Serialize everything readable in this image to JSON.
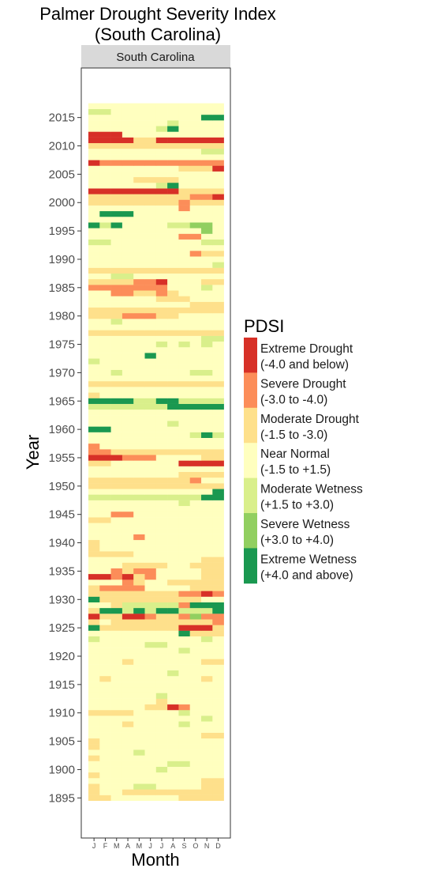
{
  "chart_data": {
    "type": "heatmap",
    "title_line1": "Palmer Drought Severity Index",
    "title_line2": "(South Carolina)",
    "facet_label": "South Carolina",
    "xlabel": "Month",
    "ylabel": "Year",
    "x_categories": [
      "J",
      "F",
      "M",
      "A",
      "M",
      "J",
      "J",
      "A",
      "S",
      "O",
      "N",
      "D"
    ],
    "y_range": [
      1895,
      2017
    ],
    "y_ticks": [
      1895,
      1900,
      1905,
      1910,
      1915,
      1920,
      1925,
      1930,
      1935,
      1940,
      1945,
      1950,
      1955,
      1960,
      1965,
      1970,
      1975,
      1980,
      1985,
      1990,
      1995,
      2000,
      2005,
      2010,
      2015
    ],
    "legend": {
      "title": "PDSI",
      "entries": [
        {
          "label_line1": "Extreme Drought",
          "label_line2": "(-4.0 and below)",
          "color": "#d73027"
        },
        {
          "label_line1": "Severe Drought",
          "label_line2": "(-3.0 to -4.0)",
          "color": "#fc8d59"
        },
        {
          "label_line1": "Moderate Drought",
          "label_line2": "(-1.5 to -3.0)",
          "color": "#fee08b"
        },
        {
          "label_line1": "Near Normal",
          "label_line2": "(-1.5 to +1.5)",
          "color": "#ffffbf"
        },
        {
          "label_line1": "Moderate Wetness",
          "label_line2": "(+1.5 to +3.0)",
          "color": "#d9ef8b"
        },
        {
          "label_line1": "Severe Wetness",
          "label_line2": "(+3.0 to +4.0)",
          "color": "#91cf60"
        },
        {
          "label_line1": "Extreme Wetness",
          "label_line2": "(+4.0 and above)",
          "color": "#1a9850"
        }
      ]
    },
    "category_codes": {
      "E": 0,
      "S": 1,
      "D": 2,
      "N": 3,
      "W": 4,
      "V": 5,
      "X": 6
    },
    "row_default": "N",
    "months": {
      "J": 0,
      "F": 1,
      "M": 2,
      "A": 3,
      "M2": 4,
      "J2": 5,
      "J3": 6,
      "A2": 7,
      "S": 8,
      "O": 9,
      "N": 10,
      "D": 11
    },
    "cells": {
      "1895": "DDNNNNNNDDDD",
      "1896": "DNNDDDDDDDDD",
      "1897": "DNNNWWNNNNDD",
      "1898": "NNNNNNNNNNDD",
      "1899": "DNNNNNNNNNNN",
      "1900": "NNNNNNWNNNNN",
      "1901": "NNNNNNNWWNNN",
      "1902": "DNNNNNNNNNNN",
      "1903": "NNNNWNNNNNNN",
      "1904": "DNNNNNNNNNNN",
      "1905": "DNNNNNNNNNNN",
      "1906": "NNNNNNNNNNDD",
      "1907": "NNNNNNNNNNNN",
      "1908": "NNNDNNNNWNNN",
      "1909": "NNNNNNNNNNWN",
      "1910": "DDDDNNNNWNNN",
      "1911": "NNNNNDDESNNN",
      "1912": "NNNNNNDNNNNN",
      "1913": "NNNNNNWNNNNN",
      "1914": "NNNNNNNNNNNN",
      "1915": "NNNNNNNNNNNN",
      "1916": "NDNNNNNNNNDN",
      "1917": "NNNNNNNWNNNN",
      "1918": "NNNNNNNNNNNN",
      "1919": "NNNDNNNNNNDD",
      "1920": "NNNNNNNNNNNN",
      "1921": "NNNNNNNNWNNN",
      "1922": "NNNNNWWNNNNN",
      "1923": "WNNNNNNNNNWN",
      "1924": "NNNNNNNNXDDD",
      "1925": "XDDDDDDDEEED",
      "1926": "DNDDDDDDDDDS",
      "1927": "EDDEESDDSVSS",
      "1928": "DXXWXWXXWWWX",
      "1929": "NNDWWWWWSXXX",
      "1930": "XDDDDDDDDDNN",
      "1931": "DDDDDDDDSSES",
      "1932": "DSSSSNNNNDDD",
      "1933": "NNNSDNNDDDDD",
      "1934": "EESEDSNNNNDD",
      "1935": "NNSDSSNNNNDD",
      "1936": "NNNDDDDNNDDD",
      "1937": "NNNNNNNNNNDD",
      "1938": "DDDDNNNNNNNN",
      "1939": "DNNNNNNNNNNN",
      "1940": "DNNNNNNNNNNN",
      "1941": "NNNNSNNNNNNN",
      "1942": "NNNNNNNNNNNN",
      "1943": "NNNNNNNNNNNN",
      "1944": "DDNNNNNNNNNN",
      "1945": "NNSSNNNNNNNN",
      "1946": "NNNNNNNNNNNN",
      "1947": "NNNNNNNNWNNN",
      "1948": "WWWWWWWWWWXX",
      "1949": "NNNNNNNNNNNX",
      "1950": "DDDDDDDDDDDD",
      "1951": "DDDDDDDDDSNN",
      "1952": "NNNNNNNNDDDD",
      "1953": "NNNNNNNNNNNN",
      "1954": "DDNNNNNNEEEE",
      "1955": "EEESSSNNNNDD",
      "1956": "SSDDDDDDDDDD",
      "1957": "SNNNNNNNNNNN",
      "1958": "NNNNNNNNNNNN",
      "1959": "NNNNNNNNNWXW",
      "1960": "XXNNNNNNNNNN",
      "1961": "NNNNNNNWNNNN",
      "1962": "NNNNNNNNNNNN",
      "1963": "NNNNNNNNNNNN",
      "1964": "WWWWWWWXXXXX",
      "1965": "XXXXWWXXWWWW",
      "1966": "DNNNNNNNNNNN",
      "1967": "NNNNNNNNNNNN",
      "1968": "DDDDDDDDDDDD",
      "1969": "NNNNNNNNNNNN",
      "1970": "NNWNNNNNNWWN",
      "1971": "NNNNNNNNNNNN",
      "1972": "WNNNNNNNNNNN",
      "1973": "NNNNNXNNNNNN",
      "1974": "NNNNNNNNNNNN",
      "1975": "NNNNNNWNWNWN",
      "1976": "NNNNNNNNNNWW",
      "1977": "DDDDDDDDDDDD",
      "1978": "NNNNNNNNNNNN",
      "1979": "NNWNNNNNNNNN",
      "1980": "DDDSSSDDNNNN",
      "1981": "DDDDDDDDDDDD",
      "1982": "NNNNNNNNNDDD",
      "1983": "NNNNNNDDDNNN",
      "1984": "NNSSDDSDNNNN",
      "1985": "SSSSSSSNNNWN",
      "1986": "DDDDSSENNNDD",
      "1987": "NNWWNNNNNNNN",
      "1988": "DDDDDDDDDDDD",
      "1989": "NNNNNNNNNNNW",
      "1990": "NNNNNNNNNNNN",
      "1991": "NNNNNNNNNSDD",
      "1992": "NNNNNNNNNNNN",
      "1993": "WWNNNNNNNNWW",
      "1994": "NNNNNNNNSSNN",
      "1995": "NNNNNNNNNNVN",
      "1996": "XWXNNNNWWVVN",
      "1997": "NNNNNNNNNNNN",
      "1998": "NXXXNNNNNNNN",
      "1999": "NNNNNNNNSNNN",
      "2000": "DDDDDDDDSDDD",
      "2001": "DDDDDDDDDSSE",
      "2002": "EEEEEEEEDDDD",
      "2003": "NNNNNNWXNNNN",
      "2004": "NNNNDDDDNNNN",
      "2005": "NNNNNNNNNNNN",
      "2006": "NNNNNNNNDDDE",
      "2007": "ESSSSSSSSSSS",
      "2008": "NNNNNNNNNNNN",
      "2009": "NNNNNNNNNNWW",
      "2010": "DDDDDDDDDDDD",
      "2011": "EEEEDDEEEEEE",
      "2012": "EEENNNNNNNNN",
      "2013": "NNNNNNWXNNNN",
      "2014": "NNNNNNNWNNNN",
      "2015": "NNNNNNNNNNXX",
      "2016": "WWNNNNNNNNNN",
      "2017": "NNNNNNNNNNNN"
    }
  }
}
